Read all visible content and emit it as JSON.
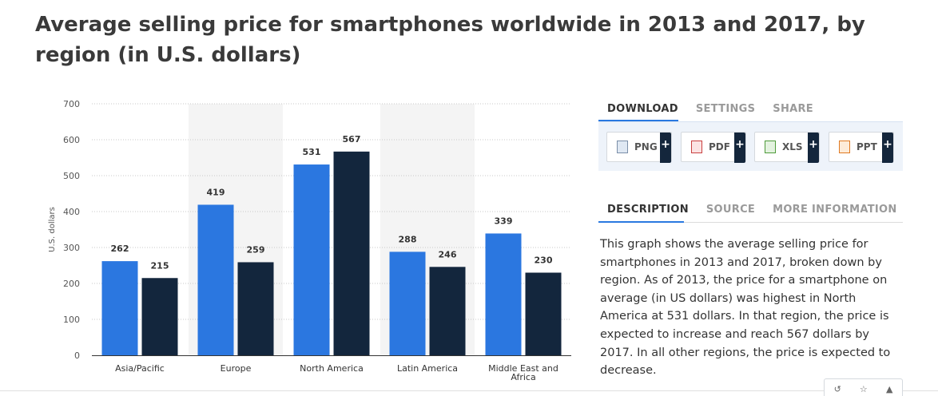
{
  "title": "Average selling price for smartphones worldwide in 2013 and 2017, by region (in U.S. dollars)",
  "chart_data": {
    "type": "bar",
    "categories": [
      "Asia/Pacific",
      "Europe",
      "North America",
      "Latin America",
      "Middle East and Africa"
    ],
    "series": [
      {
        "values": [
          262,
          419,
          531,
          288,
          339
        ],
        "color": "#2b77e0"
      },
      {
        "values": [
          215,
          259,
          567,
          246,
          230
        ],
        "color": "#13263d"
      }
    ],
    "ylabel": "U.S. dollars",
    "xlabel": "",
    "ylim": [
      0,
      700
    ],
    "yticks": [
      0,
      100,
      200,
      300,
      400,
      500,
      600,
      700
    ],
    "grid": true,
    "data_labels": true
  },
  "tabs_top": [
    "DOWNLOAD",
    "SETTINGS",
    "SHARE"
  ],
  "tabs_bottom": [
    "DESCRIPTION",
    "SOURCE",
    "MORE INFORMATION"
  ],
  "download_buttons": [
    {
      "label": "PNG",
      "icon": "png-file-icon",
      "plus": "+"
    },
    {
      "label": "PDF",
      "icon": "pdf-file-icon",
      "plus": "+"
    },
    {
      "label": "XLS",
      "icon": "xls-file-icon",
      "plus": "+"
    },
    {
      "label": "PPT",
      "icon": "ppt-file-icon",
      "plus": "+"
    }
  ],
  "description": "This graph shows the average selling price for smartphones in 2013 and 2017, broken down by region. As of 2013, the price for a smartphone on average (in US dollars) was highest in North America at 531 dollars. In that region, the price is expected to increase and reach 567 dollars by 2017. In all other regions, the price is expected to decrease.",
  "colors": {
    "accent": "#2a79e0",
    "dark": "#13263d",
    "tab_inactive": "#9a9a9a"
  }
}
